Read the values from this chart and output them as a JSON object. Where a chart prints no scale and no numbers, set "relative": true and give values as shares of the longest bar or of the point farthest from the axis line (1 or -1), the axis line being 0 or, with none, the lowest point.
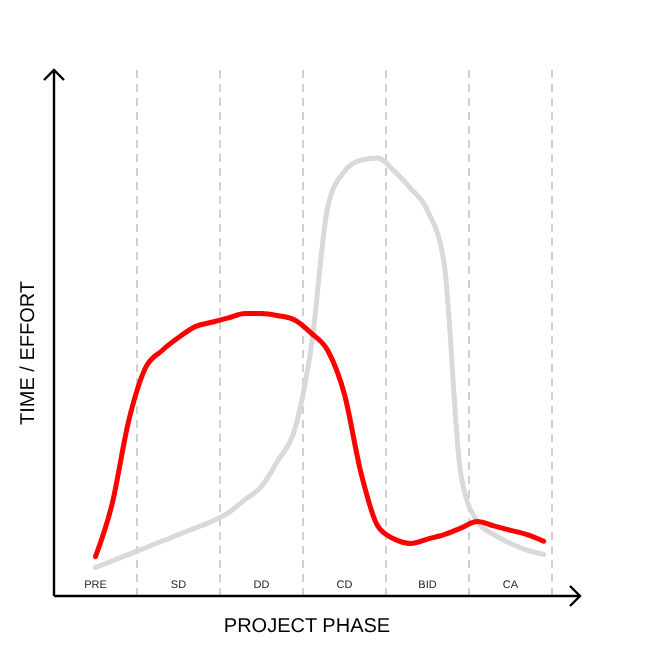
{
  "chart_data": {
    "type": "line",
    "relative": true,
    "xlabel": "PROJECT PHASE",
    "ylabel": "TIME / EFFORT",
    "categories": [
      null,
      null,
      "PRE",
      null,
      null,
      null,
      null,
      "SD",
      null,
      null,
      null,
      null,
      "DD",
      null,
      null,
      null,
      null,
      "CD",
      null,
      null,
      null,
      null,
      "BID",
      null,
      null,
      null,
      null,
      "CA",
      null,
      null
    ],
    "grid": "x",
    "marker": "none",
    "line_style": "solid",
    "series": [
      {
        "color": "#d9d9d9",
        "values": [
          null,
          null,
          0.065,
          0.08,
          0.095,
          0.11,
          0.125,
          0.14,
          0.155,
          0.17,
          0.19,
          0.22,
          0.25,
          0.31,
          0.38,
          0.57,
          0.89,
          0.97,
          0.995,
          1.0,
          0.97,
          0.93,
          0.88,
          0.76,
          0.28,
          0.17,
          0.14,
          0.12,
          0.105,
          0.095
        ]
      },
      {
        "color": "#ff0000",
        "values": [
          null,
          null,
          0.09,
          0.21,
          0.4,
          0.52,
          0.56,
          0.59,
          0.615,
          0.625,
          0.635,
          0.645,
          0.645,
          0.64,
          0.63,
          0.6,
          0.56,
          0.46,
          0.28,
          0.16,
          0.13,
          0.12,
          0.13,
          0.14,
          0.155,
          0.17,
          0.16,
          0.15,
          0.14,
          0.125
        ]
      }
    ]
  }
}
